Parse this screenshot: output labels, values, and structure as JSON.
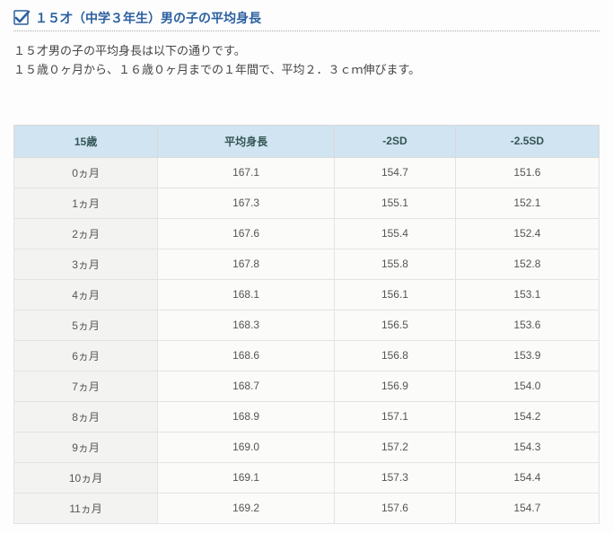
{
  "header": {
    "title": "１５才（中学３年生）男の子の平均身長",
    "icon_name": "check-icon",
    "title_color": "#2b5fa0",
    "separator_color": "#aaaaaa"
  },
  "intro": {
    "line1": "１５才男の子の平均身長は以下の通りです。",
    "line2": "１５歳０ヶ月から、１６歳０ヶ月までの１年間で、平均２．３ｃｍ伸びます。"
  },
  "table": {
    "type": "table",
    "header_bg": "#d1e4f1",
    "row_bg": "#fbfbfa",
    "first_col_bg": "#f3f3f1",
    "border_color": "#e3e3e3",
    "text_color": "#555555",
    "columns": [
      "15歳",
      "平均身長",
      "-2SD",
      "-2.5SD"
    ],
    "rows": [
      [
        "0ヵ月",
        "167.1",
        "154.7",
        "151.6"
      ],
      [
        "1ヵ月",
        "167.3",
        "155.1",
        "152.1"
      ],
      [
        "2ヵ月",
        "167.6",
        "155.4",
        "152.4"
      ],
      [
        "3ヵ月",
        "167.8",
        "155.8",
        "152.8"
      ],
      [
        "4ヵ月",
        "168.1",
        "156.1",
        "153.1"
      ],
      [
        "5ヵ月",
        "168.3",
        "156.5",
        "153.6"
      ],
      [
        "6ヵ月",
        "168.6",
        "156.8",
        "153.9"
      ],
      [
        "7ヵ月",
        "168.7",
        "156.9",
        "154.0"
      ],
      [
        "8ヵ月",
        "168.9",
        "157.1",
        "154.2"
      ],
      [
        "9ヵ月",
        "169.0",
        "157.2",
        "154.3"
      ],
      [
        "10ヵ月",
        "169.1",
        "157.3",
        "154.4"
      ],
      [
        "11ヵ月",
        "169.2",
        "157.6",
        "154.7"
      ]
    ]
  }
}
